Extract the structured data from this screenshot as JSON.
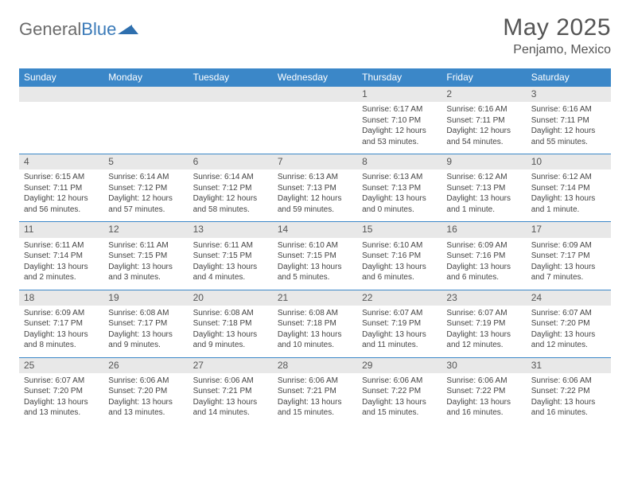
{
  "brand": {
    "name_gray": "General",
    "name_blue": "Blue"
  },
  "title": "May 2025",
  "location": "Penjamo, Mexico",
  "colors": {
    "header_bg": "#3b87c8",
    "header_text": "#ffffff",
    "daynum_bg": "#e8e8e8",
    "rule": "#3b87c8",
    "text": "#444444",
    "title_text": "#555555"
  },
  "weekdays": [
    "Sunday",
    "Monday",
    "Tuesday",
    "Wednesday",
    "Thursday",
    "Friday",
    "Saturday"
  ],
  "weeks": [
    [
      null,
      null,
      null,
      null,
      {
        "n": "1",
        "sr": "6:17 AM",
        "ss": "7:10 PM",
        "dl": "12 hours and 53 minutes."
      },
      {
        "n": "2",
        "sr": "6:16 AM",
        "ss": "7:11 PM",
        "dl": "12 hours and 54 minutes."
      },
      {
        "n": "3",
        "sr": "6:16 AM",
        "ss": "7:11 PM",
        "dl": "12 hours and 55 minutes."
      }
    ],
    [
      {
        "n": "4",
        "sr": "6:15 AM",
        "ss": "7:11 PM",
        "dl": "12 hours and 56 minutes."
      },
      {
        "n": "5",
        "sr": "6:14 AM",
        "ss": "7:12 PM",
        "dl": "12 hours and 57 minutes."
      },
      {
        "n": "6",
        "sr": "6:14 AM",
        "ss": "7:12 PM",
        "dl": "12 hours and 58 minutes."
      },
      {
        "n": "7",
        "sr": "6:13 AM",
        "ss": "7:13 PM",
        "dl": "12 hours and 59 minutes."
      },
      {
        "n": "8",
        "sr": "6:13 AM",
        "ss": "7:13 PM",
        "dl": "13 hours and 0 minutes."
      },
      {
        "n": "9",
        "sr": "6:12 AM",
        "ss": "7:13 PM",
        "dl": "13 hours and 1 minute."
      },
      {
        "n": "10",
        "sr": "6:12 AM",
        "ss": "7:14 PM",
        "dl": "13 hours and 1 minute."
      }
    ],
    [
      {
        "n": "11",
        "sr": "6:11 AM",
        "ss": "7:14 PM",
        "dl": "13 hours and 2 minutes."
      },
      {
        "n": "12",
        "sr": "6:11 AM",
        "ss": "7:15 PM",
        "dl": "13 hours and 3 minutes."
      },
      {
        "n": "13",
        "sr": "6:11 AM",
        "ss": "7:15 PM",
        "dl": "13 hours and 4 minutes."
      },
      {
        "n": "14",
        "sr": "6:10 AM",
        "ss": "7:15 PM",
        "dl": "13 hours and 5 minutes."
      },
      {
        "n": "15",
        "sr": "6:10 AM",
        "ss": "7:16 PM",
        "dl": "13 hours and 6 minutes."
      },
      {
        "n": "16",
        "sr": "6:09 AM",
        "ss": "7:16 PM",
        "dl": "13 hours and 6 minutes."
      },
      {
        "n": "17",
        "sr": "6:09 AM",
        "ss": "7:17 PM",
        "dl": "13 hours and 7 minutes."
      }
    ],
    [
      {
        "n": "18",
        "sr": "6:09 AM",
        "ss": "7:17 PM",
        "dl": "13 hours and 8 minutes."
      },
      {
        "n": "19",
        "sr": "6:08 AM",
        "ss": "7:17 PM",
        "dl": "13 hours and 9 minutes."
      },
      {
        "n": "20",
        "sr": "6:08 AM",
        "ss": "7:18 PM",
        "dl": "13 hours and 9 minutes."
      },
      {
        "n": "21",
        "sr": "6:08 AM",
        "ss": "7:18 PM",
        "dl": "13 hours and 10 minutes."
      },
      {
        "n": "22",
        "sr": "6:07 AM",
        "ss": "7:19 PM",
        "dl": "13 hours and 11 minutes."
      },
      {
        "n": "23",
        "sr": "6:07 AM",
        "ss": "7:19 PM",
        "dl": "13 hours and 12 minutes."
      },
      {
        "n": "24",
        "sr": "6:07 AM",
        "ss": "7:20 PM",
        "dl": "13 hours and 12 minutes."
      }
    ],
    [
      {
        "n": "25",
        "sr": "6:07 AM",
        "ss": "7:20 PM",
        "dl": "13 hours and 13 minutes."
      },
      {
        "n": "26",
        "sr": "6:06 AM",
        "ss": "7:20 PM",
        "dl": "13 hours and 13 minutes."
      },
      {
        "n": "27",
        "sr": "6:06 AM",
        "ss": "7:21 PM",
        "dl": "13 hours and 14 minutes."
      },
      {
        "n": "28",
        "sr": "6:06 AM",
        "ss": "7:21 PM",
        "dl": "13 hours and 15 minutes."
      },
      {
        "n": "29",
        "sr": "6:06 AM",
        "ss": "7:22 PM",
        "dl": "13 hours and 15 minutes."
      },
      {
        "n": "30",
        "sr": "6:06 AM",
        "ss": "7:22 PM",
        "dl": "13 hours and 16 minutes."
      },
      {
        "n": "31",
        "sr": "6:06 AM",
        "ss": "7:22 PM",
        "dl": "13 hours and 16 minutes."
      }
    ]
  ],
  "labels": {
    "sunrise": "Sunrise:",
    "sunset": "Sunset:",
    "daylight": "Daylight:"
  }
}
